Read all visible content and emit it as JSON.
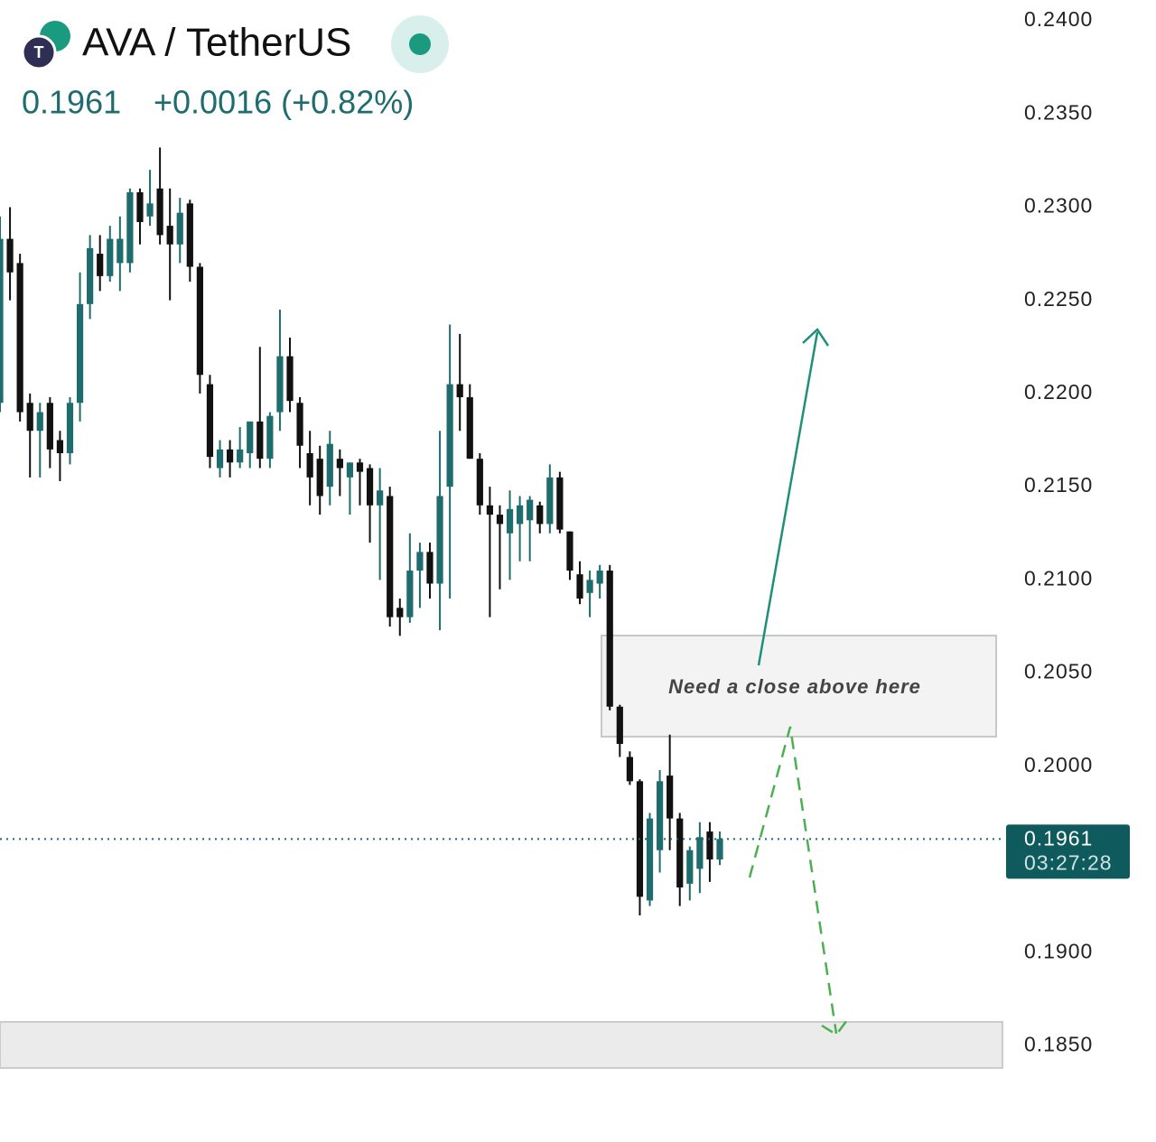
{
  "header": {
    "symbol": "AVA / TetherUS",
    "price": "0.1961",
    "change": "+0.0016 (+0.82%)"
  },
  "chart_data": {
    "type": "candlestick",
    "up_color": "#1f6c6e",
    "down_color": "#111111",
    "open": [
      0.2195,
      0.2283,
      0.227,
      0.2195,
      0.218,
      0.2195,
      0.2175,
      0.2168,
      0.2195,
      0.2248,
      0.2275,
      0.2263,
      0.227,
      0.227,
      0.2308,
      0.2295,
      0.231,
      0.229,
      0.228,
      0.2302,
      0.2268,
      0.2205,
      0.216,
      0.217,
      0.2163,
      0.2168,
      0.2185,
      0.2165,
      0.219,
      0.222,
      0.2195,
      0.2168,
      0.2165,
      0.215,
      0.2165,
      0.2155,
      0.2163,
      0.216,
      0.214,
      0.2145,
      0.2085,
      0.208,
      0.2105,
      0.2115,
      0.2098,
      0.215,
      0.2205,
      0.2198,
      0.2165,
      0.214,
      0.2135,
      0.2125,
      0.213,
      0.2132,
      0.214,
      0.213,
      0.2155,
      0.2126,
      0.2103,
      0.2093,
      0.2098,
      0.2105,
      0.2032,
      0.2005,
      0.1992,
      0.1928,
      0.1955,
      0.1995,
      0.1972,
      0.1937,
      0.1945,
      0.1965,
      0.195
    ],
    "high": [
      0.2295,
      0.23,
      0.2275,
      0.22,
      0.2195,
      0.2198,
      0.218,
      0.2198,
      0.2265,
      0.2285,
      0.2285,
      0.229,
      0.2295,
      0.231,
      0.231,
      0.232,
      0.2332,
      0.231,
      0.2305,
      0.2304,
      0.227,
      0.221,
      0.2175,
      0.2175,
      0.2182,
      0.2185,
      0.2225,
      0.219,
      0.2245,
      0.223,
      0.2198,
      0.218,
      0.2172,
      0.218,
      0.217,
      0.2163,
      0.2165,
      0.2162,
      0.216,
      0.215,
      0.209,
      0.2125,
      0.212,
      0.212,
      0.218,
      0.2237,
      0.2232,
      0.2205,
      0.2168,
      0.215,
      0.214,
      0.2148,
      0.2145,
      0.2145,
      0.2142,
      0.2162,
      0.2158,
      0.2126,
      0.211,
      0.2105,
      0.2108,
      0.2108,
      0.2033,
      0.2008,
      0.1993,
      0.1975,
      0.1998,
      0.2017,
      0.1975,
      0.1957,
      0.197,
      0.197,
      0.1965
    ],
    "low": [
      0.219,
      0.225,
      0.2185,
      0.2155,
      0.2155,
      0.216,
      0.2153,
      0.2162,
      0.2185,
      0.224,
      0.2255,
      0.226,
      0.2255,
      0.2265,
      0.228,
      0.229,
      0.228,
      0.225,
      0.227,
      0.226,
      0.22,
      0.216,
      0.2155,
      0.2155,
      0.216,
      0.216,
      0.216,
      0.216,
      0.218,
      0.219,
      0.216,
      0.214,
      0.2135,
      0.214,
      0.2145,
      0.2135,
      0.214,
      0.212,
      0.21,
      0.2075,
      0.207,
      0.2077,
      0.2085,
      0.209,
      0.2073,
      0.209,
      0.218,
      0.2165,
      0.2135,
      0.208,
      0.2095,
      0.21,
      0.211,
      0.211,
      0.2125,
      0.2125,
      0.2125,
      0.21,
      0.2087,
      0.208,
      0.209,
      0.203,
      0.2005,
      0.199,
      0.192,
      0.1925,
      0.1943,
      0.1955,
      0.1925,
      0.1928,
      0.1932,
      0.1938,
      0.1947
    ],
    "close": [
      0.2283,
      0.2265,
      0.219,
      0.218,
      0.219,
      0.217,
      0.2168,
      0.2195,
      0.2248,
      0.2278,
      0.2263,
      0.2283,
      0.2283,
      0.2308,
      0.2292,
      0.2302,
      0.2285,
      0.228,
      0.2297,
      0.2268,
      0.221,
      0.2166,
      0.217,
      0.2163,
      0.217,
      0.2185,
      0.2165,
      0.2188,
      0.222,
      0.2196,
      0.2172,
      0.2155,
      0.2145,
      0.2173,
      0.216,
      0.2163,
      0.2158,
      0.214,
      0.2148,
      0.208,
      0.208,
      0.2105,
      0.2115,
      0.2098,
      0.2145,
      0.2205,
      0.2198,
      0.2165,
      0.214,
      0.2135,
      0.213,
      0.2138,
      0.214,
      0.2143,
      0.213,
      0.2155,
      0.2127,
      0.2105,
      0.209,
      0.21,
      0.2105,
      0.2032,
      0.2012,
      0.1992,
      0.193,
      0.1972,
      0.1992,
      0.1972,
      0.1935,
      0.1955,
      0.1962,
      0.195,
      0.1961
    ],
    "ylim": [
      0.18375,
      0.24105
    ],
    "yticks": [
      {
        "value": 0.24,
        "label": "0.2400"
      },
      {
        "value": 0.235,
        "label": "0.2350"
      },
      {
        "value": 0.23,
        "label": "0.2300"
      },
      {
        "value": 0.225,
        "label": "0.2250"
      },
      {
        "value": 0.22,
        "label": "0.2200"
      },
      {
        "value": 0.215,
        "label": "0.2150"
      },
      {
        "value": 0.21,
        "label": "0.2100"
      },
      {
        "value": 0.205,
        "label": "0.2050"
      },
      {
        "value": 0.2,
        "label": "0.2000"
      },
      {
        "value": 0.19,
        "label": "0.1900"
      },
      {
        "value": 0.185,
        "label": "0.1850"
      }
    ],
    "last_price": {
      "value": 0.1961,
      "label": "0.1961"
    },
    "countdown": "03:27:28",
    "annotation": "Need a close above here"
  }
}
